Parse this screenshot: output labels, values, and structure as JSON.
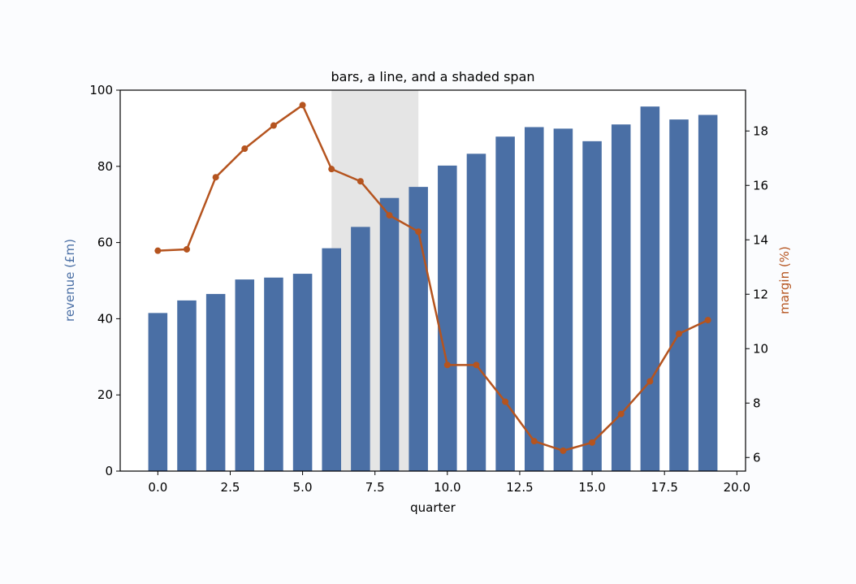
{
  "chart_data": {
    "type": "bar",
    "title": "bars, a line, and a shaded span",
    "xlabel": "quarter",
    "ylabel": "revenue  (£m)",
    "y2label": "margin  (%)",
    "xlim": [
      -1.3,
      20.3
    ],
    "ylim": [
      0,
      100
    ],
    "y2lim": [
      5.5,
      19.5
    ],
    "xticks": [
      "0.0",
      "2.5",
      "5.0",
      "7.5",
      "10.0",
      "12.5",
      "15.0",
      "17.5",
      "20.0"
    ],
    "yticks": [
      "0",
      "20",
      "40",
      "60",
      "80",
      "100"
    ],
    "y2ticks": [
      "6",
      "8",
      "10",
      "12",
      "14",
      "16",
      "18"
    ],
    "shaded_span": [
      6,
      9
    ],
    "grid": false,
    "x": [
      0,
      1,
      2,
      3,
      4,
      5,
      6,
      7,
      8,
      9,
      10,
      11,
      12,
      13,
      14,
      15,
      16,
      17,
      18,
      19
    ],
    "series": [
      {
        "kind": "bar",
        "axis": "left",
        "color": "#4a6fa5",
        "values": [
          41.5,
          44.8,
          46.5,
          50.3,
          50.8,
          51.8,
          58.5,
          64.1,
          71.7,
          74.6,
          80.2,
          83.3,
          87.8,
          90.3,
          89.9,
          86.6,
          91.0,
          95.7,
          92.3,
          93.5
        ]
      },
      {
        "kind": "line",
        "axis": "right",
        "color": "#b5541f",
        "values": [
          13.6,
          13.65,
          16.3,
          17.35,
          18.2,
          18.95,
          16.6,
          16.15,
          14.9,
          14.3,
          9.4,
          9.4,
          8.05,
          6.6,
          6.25,
          6.55,
          7.6,
          8.8,
          10.55,
          11.05
        ]
      }
    ]
  }
}
